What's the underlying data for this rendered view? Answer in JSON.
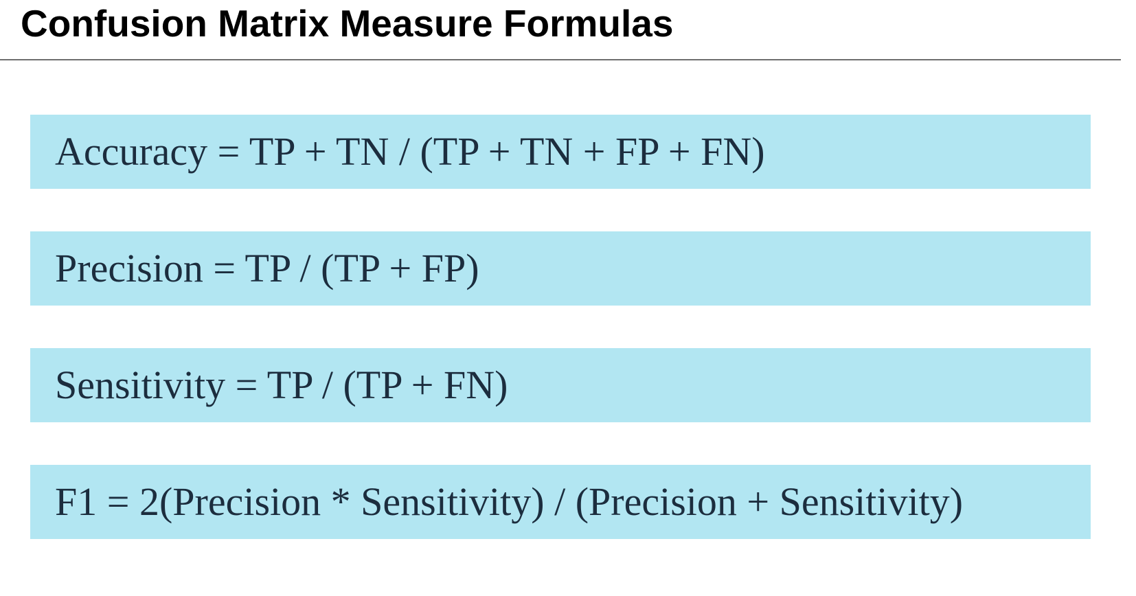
{
  "title": "Confusion Matrix Measure Formulas",
  "colors": {
    "box_background": "#b2e6f2",
    "formula_text": "#1c2d3e",
    "title_text": "#000000",
    "rule": "#6e6e6e"
  },
  "formulas": [
    {
      "text": "Accuracy = TP + TN / (TP + TN + FP + FN)"
    },
    {
      "text": "Precision = TP / (TP + FP)"
    },
    {
      "text": "Sensitivity = TP / (TP + FN)"
    },
    {
      "text": "F1 = 2(Precision * Sensitivity) / (Precision + Sensitivity)"
    }
  ]
}
